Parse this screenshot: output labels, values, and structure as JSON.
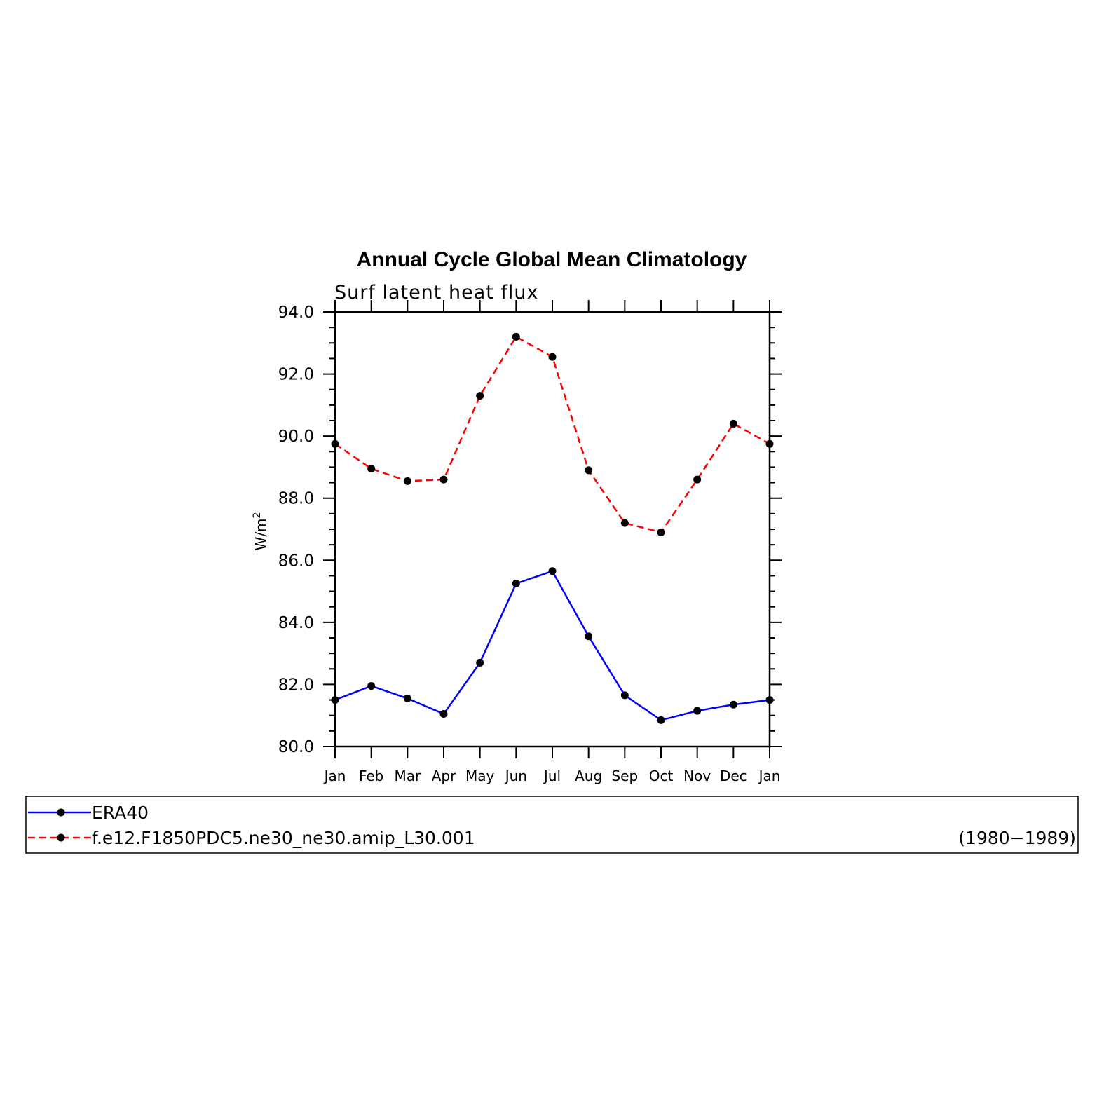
{
  "chart_data": {
    "type": "line",
    "title": "Annual Cycle Global Mean Climatology",
    "subtitle": "Surf latent heat flux",
    "ylabel": "W/m",
    "ylabel_sup": "2",
    "xlabel": "",
    "categories": [
      "Jan",
      "Feb",
      "Mar",
      "Apr",
      "May",
      "Jun",
      "Jul",
      "Aug",
      "Sep",
      "Oct",
      "Nov",
      "Dec",
      "Jan"
    ],
    "ylim": [
      80.0,
      94.0
    ],
    "yticks": [
      "80.0",
      "82.0",
      "84.0",
      "86.0",
      "88.0",
      "90.0",
      "92.0",
      "94.0"
    ],
    "grid": false,
    "legend_position": "bottom",
    "series": [
      {
        "name": "ERA40",
        "color": "#0000ff",
        "dash": "solid",
        "values": [
          81.5,
          81.95,
          81.55,
          81.05,
          82.7,
          85.25,
          85.65,
          83.55,
          81.65,
          80.85,
          81.15,
          81.35,
          81.5
        ]
      },
      {
        "name": "f.e12.F1850PDC5.ne30_ne30.amip_L30.001",
        "period": "(1980−1989)",
        "color": "#ff0000",
        "dash": "dashed",
        "values": [
          89.75,
          88.95,
          88.55,
          88.6,
          91.3,
          93.2,
          92.55,
          88.9,
          87.2,
          86.9,
          88.6,
          90.4,
          89.75
        ]
      }
    ]
  }
}
